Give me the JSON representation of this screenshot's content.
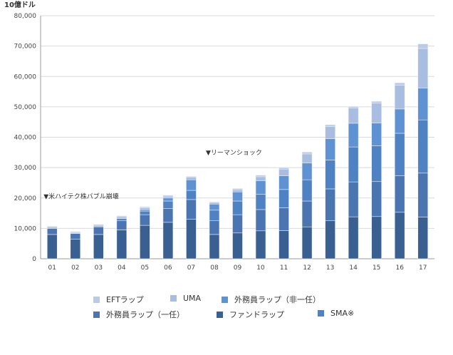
{
  "chart_data": {
    "type": "bar",
    "stacked": true,
    "unit_label": "10億ドル",
    "categories": [
      "01",
      "02",
      "03",
      "04",
      "05",
      "06",
      "07",
      "08",
      "09",
      "10",
      "11",
      "12",
      "13",
      "14",
      "15",
      "16",
      "17"
    ],
    "y_ticks": [
      "0",
      "10,000",
      "20,000",
      "30,000",
      "40,000",
      "50,000",
      "60,000",
      "70,000",
      "80,000"
    ],
    "ylim": [
      0,
      80000
    ],
    "grid": true,
    "series": [
      {
        "name": "ファンドラップ",
        "color": "#3a5f91",
        "values": [
          8000,
          6500,
          8000,
          9500,
          11000,
          12000,
          13000,
          8000,
          8500,
          9200,
          9300,
          10500,
          12500,
          13800,
          13900,
          15300,
          13700
        ]
      },
      {
        "name": "外務員ラップ（一任）",
        "color": "#4a75b0",
        "values": [
          2000,
          1800,
          2500,
          3000,
          3500,
          4500,
          6500,
          4500,
          6000,
          7000,
          7500,
          8500,
          10500,
          11500,
          11500,
          12000,
          14500
        ]
      },
      {
        "name": "SMA※",
        "color": "#4f82c2",
        "values": [
          0,
          0,
          0,
          700,
          1200,
          2500,
          3000,
          3500,
          4500,
          5000,
          6000,
          7000,
          9500,
          11500,
          11800,
          14000,
          17500
        ]
      },
      {
        "name": "外務員ラップ（非一任）",
        "color": "#5e92d3",
        "values": [
          0,
          0,
          0,
          0,
          500,
          1000,
          3500,
          2000,
          3000,
          4500,
          4500,
          5500,
          7000,
          7800,
          7500,
          8000,
          10500
        ]
      },
      {
        "name": "UMA",
        "color": "#a9bde0",
        "values": [
          400,
          300,
          500,
          600,
          600,
          600,
          800,
          500,
          700,
          1300,
          2200,
          3000,
          4000,
          5000,
          6500,
          7800,
          13000
        ]
      },
      {
        "name": "EFTラップ",
        "color": "#bccae4",
        "values": [
          300,
          300,
          300,
          300,
          300,
          300,
          300,
          200,
          400,
          500,
          500,
          600,
          600,
          500,
          600,
          800,
          1500
        ]
      }
    ],
    "annotations": [
      {
        "category": "01",
        "text": "▼米ハイテク株バブル崩壊"
      },
      {
        "category": "08",
        "text": "▼リーマンショック"
      }
    ]
  }
}
